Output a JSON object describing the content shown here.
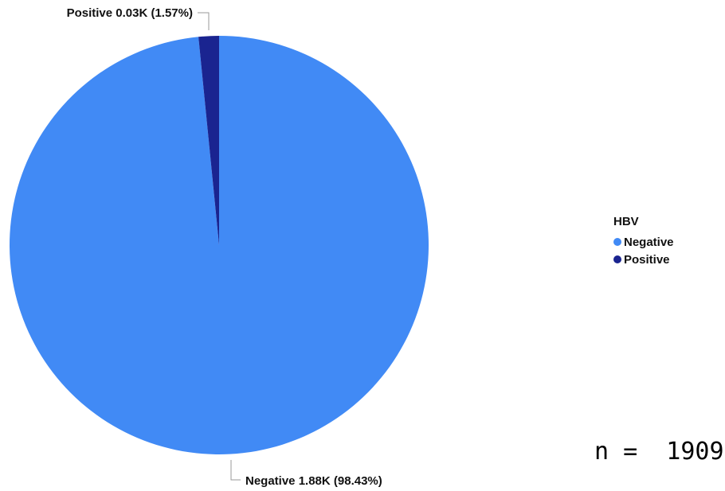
{
  "chart_data": {
    "type": "pie",
    "legend_title": "HBV",
    "legend_position": "right",
    "slices": [
      {
        "name": "Negative",
        "value": 1879,
        "display_value": "1.88K",
        "percent": "98.43%",
        "label": "Negative 1.88K (98.43%)",
        "color": "#418AF5"
      },
      {
        "name": "Positive",
        "value": 30,
        "display_value": "0.03K",
        "percent": "1.57%",
        "label": "Positive 0.03K (1.57%)",
        "color": "#1A2490"
      }
    ]
  },
  "annotation": {
    "n_text": "n =  1909"
  }
}
